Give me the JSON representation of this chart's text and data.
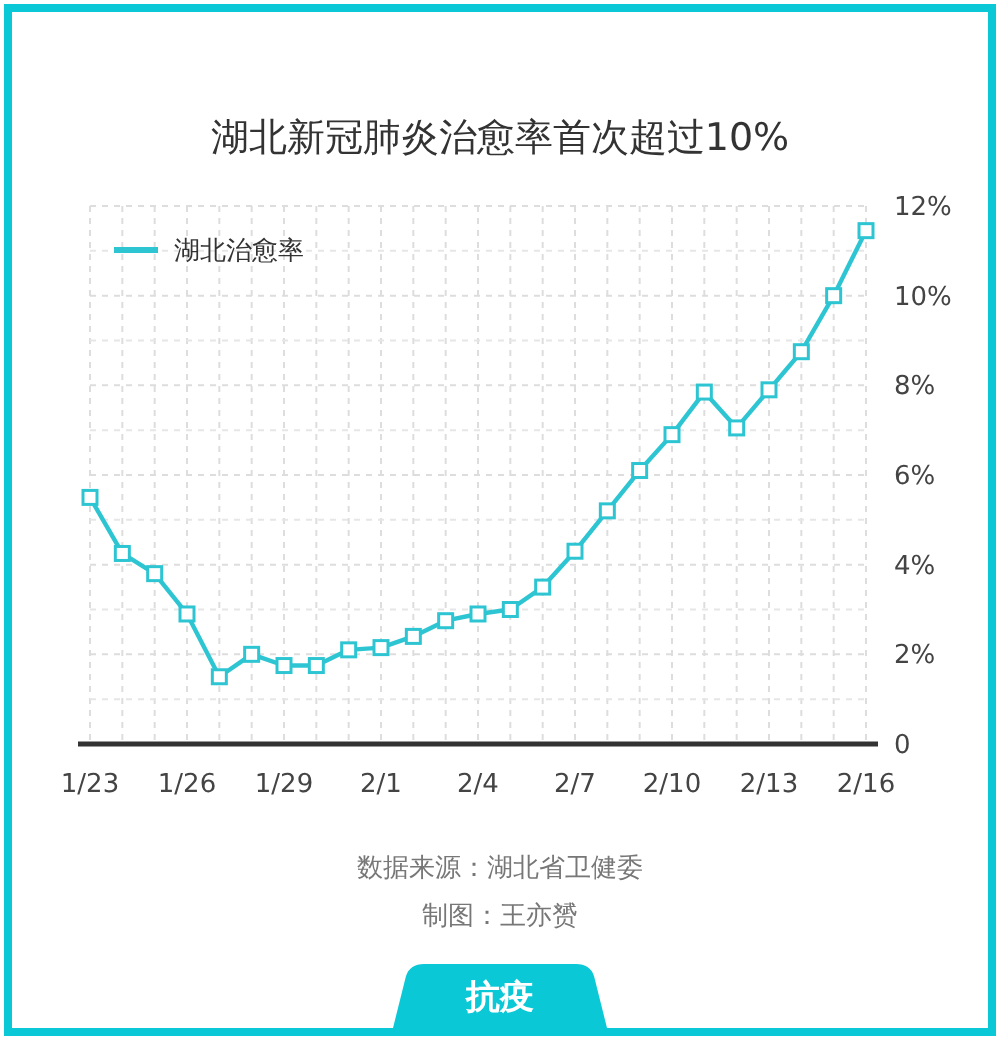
{
  "chart_data": {
    "type": "line",
    "title": "湖北新冠肺炎治愈率首次超过10%",
    "categories": [
      "1/23",
      null,
      null,
      "1/26",
      null,
      null,
      "1/29",
      null,
      null,
      "2/1",
      null,
      null,
      "2/4",
      null,
      null,
      "2/7",
      null,
      null,
      "2/10",
      null,
      null,
      "2/13",
      null,
      null,
      "2/16"
    ],
    "series": [
      {
        "name": "湖北治愈率",
        "color": "#2ec5d3",
        "values": [
          5.5,
          4.25,
          3.8,
          2.9,
          1.5,
          2.0,
          1.75,
          1.75,
          2.1,
          2.15,
          2.4,
          2.75,
          2.9,
          3.0,
          3.5,
          4.3,
          5.2,
          6.1,
          6.9,
          7.85,
          7.05,
          7.9,
          8.75,
          10.0,
          11.45
        ]
      }
    ],
    "ylim": [
      0,
      12
    ],
    "yticks": [
      0,
      {
        "value": 2,
        "label": "2%"
      },
      {
        "value": 4,
        "label": "4%"
      },
      {
        "value": 6,
        "label": "6%"
      },
      {
        "value": 8,
        "label": "8%"
      },
      {
        "value": 10,
        "label": "10%"
      },
      {
        "value": 12,
        "label": "12%"
      }
    ],
    "grid": true,
    "legend": "top left",
    "marker": "square",
    "line_style": "solid",
    "annotations": [
      "数据来源：湖北省卫健委",
      "制图：王亦赟",
      "抗疫"
    ]
  }
}
